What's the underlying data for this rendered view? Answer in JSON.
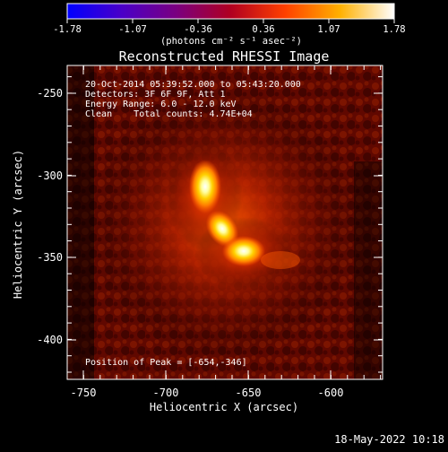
{
  "colorbar": {
    "ticks": [
      "-1.78",
      "-1.07",
      "-0.36",
      "0.36",
      "1.07",
      "1.78"
    ],
    "unit_label": "(photons cm⁻² s⁻¹ asec⁻²)",
    "gradient_colors": [
      "#0000ff",
      "#4a00c8",
      "#7a0080",
      "#b00020",
      "#ff4000",
      "#ffb000",
      "#ffffff"
    ]
  },
  "plot": {
    "title": "Reconstructed RHESSI Image",
    "annotation_lines": [
      "20-Oct-2014 05:39:52.000 to 05:43:20.000",
      "Detectors: 3F 6F 9F, Att 1",
      "Energy Range: 6.0 - 12.0 keV",
      "Clean    Total counts: 4.74E+04"
    ],
    "peak_label": "Position of Peak = [-654,-346]",
    "timestamp": "18-May-2022 10:18",
    "image_colors": [
      "#000000",
      "#3a0000",
      "#5a0500",
      "#8a1000",
      "#c83000",
      "#ff6000",
      "#ffb000",
      "#ffff80",
      "#ffffff"
    ]
  },
  "axes": {
    "xlabel": "Heliocentric X (arcsec)",
    "ylabel": "Heliocentric Y (arcsec)",
    "x_ticks": [
      "-750",
      "-700",
      "-650",
      "-600"
    ],
    "y_ticks": [
      "-250",
      "-300",
      "-350",
      "-400"
    ]
  }
}
